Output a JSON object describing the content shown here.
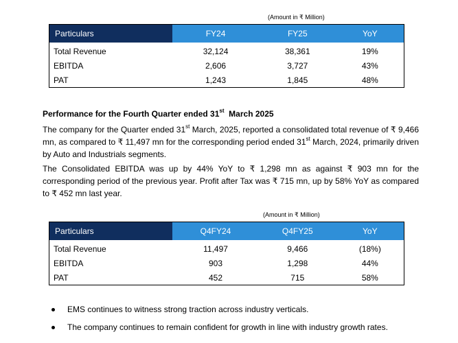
{
  "table1": {
    "unit_note": "(Amount in ₹ Million)",
    "headers": [
      "Particulars",
      "FY24",
      "FY25",
      "YoY"
    ],
    "rows": [
      [
        "Total Revenue",
        "32,124",
        "38,361",
        "19%"
      ],
      [
        "EBITDA",
        "2,606",
        "3,727",
        "43%"
      ],
      [
        "PAT",
        "1,243",
        "1,845",
        "48%"
      ]
    ]
  },
  "section": {
    "title_pre": "Performance for the Fourth Quarter ended 31",
    "title_sup": "st",
    "title_post": "  March 2025"
  },
  "para1": {
    "p1": "The company for the Quarter ended 31",
    "s1": "st",
    "p2": " March, 2025, reported a consolidated total revenue of ₹ 9,466 mn, as compared to ₹ 11,497 mn for the corresponding period ended 31",
    "s2": "st",
    "p3": " March, 2024, primarily driven by Auto and Industrials segments."
  },
  "para2": {
    "text": "The Consolidated EBITDA was up by 44% YoY to ₹ 1,298 mn as against ₹ 903 mn for the corresponding period of the previous year. Profit after Tax was ₹ 715 mn, up by 58% YoY as compared to ₹ 452 mn last year."
  },
  "table2": {
    "unit_note": "(Amount in ₹ Million)",
    "headers": [
      "Particulars",
      "Q4FY24",
      "Q4FY25",
      "YoY"
    ],
    "rows": [
      [
        "Total Revenue",
        "11,497",
        "9,466",
        "(18%)"
      ],
      [
        "EBITDA",
        "903",
        "1,298",
        "44%"
      ],
      [
        "PAT",
        "452",
        "715",
        "58%"
      ]
    ]
  },
  "bullets": [
    "EMS continues to witness strong traction across industry verticals.",
    "The company continues to remain confident for growth in line with industry growth rates."
  ]
}
